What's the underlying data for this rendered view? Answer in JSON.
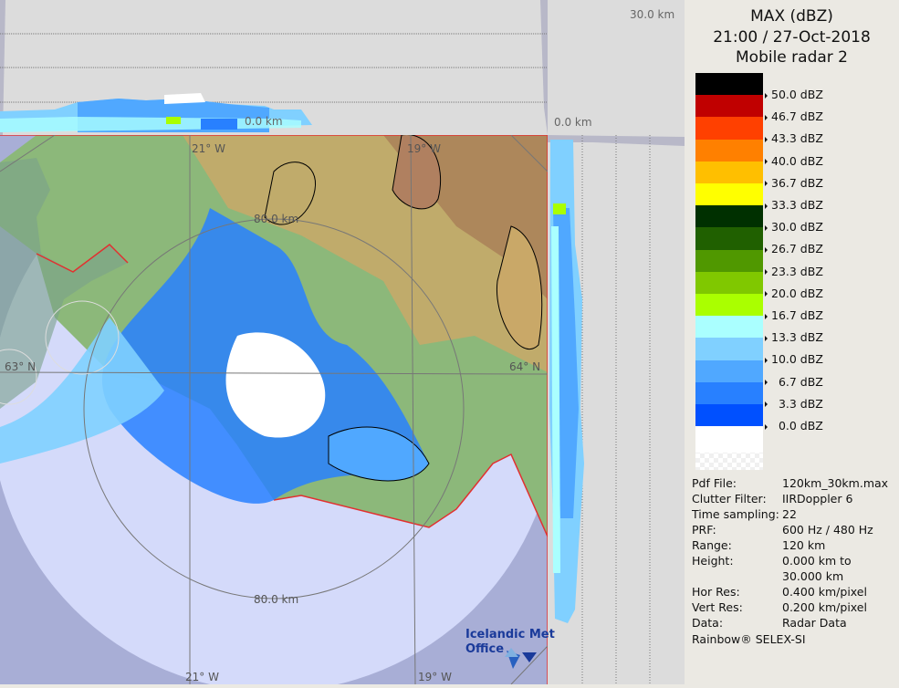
{
  "header": {
    "product": "MAX (dBZ)",
    "datetime": "21:00 / 27-Oct-2018",
    "radar": "Mobile radar 2"
  },
  "legend": [
    {
      "color": "#000000",
      "label": "50.0 dBZ"
    },
    {
      "color": "#c00000",
      "label": "46.7 dBZ"
    },
    {
      "color": "#ff4000",
      "label": "43.3 dBZ"
    },
    {
      "color": "#ff8000",
      "label": "40.0 dBZ"
    },
    {
      "color": "#ffbf00",
      "label": "36.7 dBZ"
    },
    {
      "color": "#ffff00",
      "label": "33.3 dBZ"
    },
    {
      "color": "#003000",
      "label": "30.0 dBZ"
    },
    {
      "color": "#206000",
      "label": "26.7 dBZ"
    },
    {
      "color": "#509800",
      "label": "23.3 dBZ"
    },
    {
      "color": "#80c800",
      "label": "20.0 dBZ"
    },
    {
      "color": "#aaff00",
      "label": "16.7 dBZ"
    },
    {
      "color": "#aaffff",
      "label": "13.3 dBZ"
    },
    {
      "color": "#80d0ff",
      "label": "10.0 dBZ"
    },
    {
      "color": "#50a8ff",
      "label": "  6.7 dBZ"
    },
    {
      "color": "#2880ff",
      "label": "  3.3 dBZ"
    },
    {
      "color": "#0050ff",
      "label": "  0.0 dBZ"
    },
    {
      "color": "#ffffff",
      "label": ""
    }
  ],
  "info": [
    {
      "key": "Pdf File:",
      "value": "120km_30km.max"
    },
    {
      "key": "Clutter Filter:",
      "value": "IIRDoppler 6"
    },
    {
      "key": "Time sampling:",
      "value": "22"
    },
    {
      "key": "PRF:",
      "value": "600 Hz / 480 Hz"
    },
    {
      "key": "Range:",
      "value": "120 km"
    },
    {
      "key": "Height:",
      "value": "0.000 km to"
    },
    {
      "key": "",
      "value": "30.000 km"
    },
    {
      "key": "Hor Res:",
      "value": "0.400 km/pixel"
    },
    {
      "key": "Vert Res:",
      "value": "0.200 km/pixel"
    },
    {
      "key": "Data:",
      "value": "Radar Data"
    }
  ],
  "footer": "Rainbow® SELEX-SI",
  "axes": {
    "top_height": "30.0 km",
    "zero_height": "0.0 km",
    "ring_top": "80.0 km",
    "ring_bottom": "80.0 km",
    "lon_21_top": "21° W",
    "lon_19_top": "19° W",
    "lon_21_bottom": "21° W",
    "lon_19_bottom": "19° W",
    "lat_63": "63° N",
    "lat_64": "64° N"
  },
  "logo": {
    "line1": "Icelandic Met",
    "line2": "Office"
  }
}
